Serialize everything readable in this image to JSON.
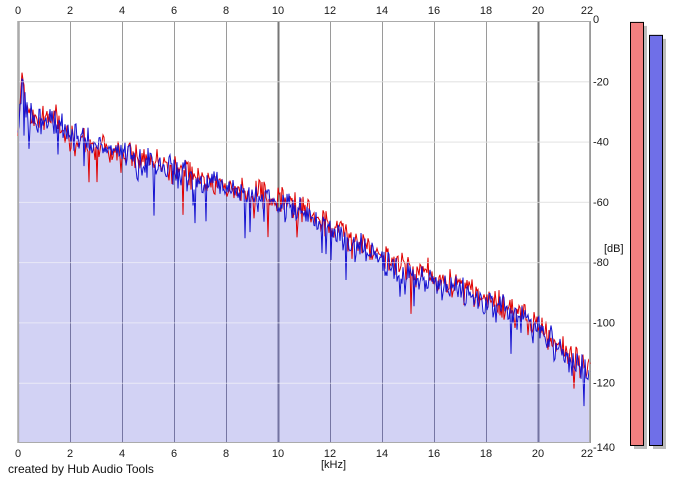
{
  "window": {
    "background": "#ffffff"
  },
  "footer": {
    "credit": "created by Hub Audio Tools"
  },
  "chart_data": {
    "type": "area",
    "title": "",
    "xlabel": "[kHz]",
    "ylabel": "[dB]",
    "xlim": [
      0,
      22
    ],
    "ylim": [
      -140,
      0
    ],
    "x_ticks": [
      0,
      2,
      4,
      6,
      8,
      10,
      12,
      14,
      16,
      18,
      20,
      22
    ],
    "y_ticks": [
      0,
      -20,
      -40,
      -60,
      -80,
      -100,
      -120,
      -140
    ],
    "grid": true,
    "emphasized_x_gridlines": [
      10,
      20
    ],
    "legend": "none",
    "colors": {
      "plot_background": "#ffffff",
      "area_fill": "#cacaf2",
      "v_grid": "#9a9a9a",
      "v_grid_emphasis": "#767676",
      "h_grid": "#c6c6c6",
      "axis_line": "#7e7e7e",
      "red_trace": "#df0000",
      "blue_trace": "#1512d0",
      "meter_red_fill": "#f28080",
      "meter_blue_fill": "#6f6fe8",
      "meter_shadow": "#bcbcbc",
      "tick_text": "#1a1a1a"
    },
    "series": [
      {
        "name": "spectrum-red",
        "color": "#df0000",
        "trend_x": [
          0,
          0.15,
          0.35,
          0.6,
          1,
          1.3,
          2,
          3,
          4,
          5,
          6,
          7,
          8,
          9,
          10,
          11,
          12,
          13,
          14,
          15,
          16,
          17,
          18,
          19,
          20,
          21,
          22
        ],
        "trend_db": [
          -38,
          -13,
          -30,
          -33,
          -33,
          -29,
          -39,
          -42,
          -44,
          -46,
          -49,
          -52,
          -55,
          -57,
          -60,
          -63,
          -68,
          -73,
          -78,
          -82,
          -85,
          -88,
          -92,
          -96,
          -102,
          -109,
          -116
        ]
      },
      {
        "name": "spectrum-blue",
        "color": "#1512d0",
        "fill": "#cacaf2",
        "trend_x": [
          0,
          0.15,
          0.35,
          0.6,
          1,
          1.3,
          2,
          3,
          4,
          5,
          6,
          7,
          8,
          9,
          10,
          11,
          12,
          13,
          14,
          15,
          16,
          17,
          18,
          19,
          20,
          21,
          22
        ],
        "trend_db": [
          -42,
          -16,
          -31,
          -34,
          -35,
          -33,
          -38,
          -41,
          -44,
          -47,
          -50,
          -53,
          -55,
          -58,
          -61,
          -64,
          -69,
          -75,
          -80,
          -84,
          -87,
          -90,
          -93,
          -97,
          -103,
          -110,
          -118
        ]
      }
    ],
    "noise": {
      "seed": 1337,
      "amplitude_db": 6,
      "spike_probability": 0.05,
      "spike_depth_db": 16,
      "points_per_khz": 26
    },
    "level_meters": [
      {
        "name": "red-meter",
        "color": "#f28080",
        "value_db": -0.3
      },
      {
        "name": "blue-meter",
        "color": "#6f6fe8",
        "value_db": -4.6
      }
    ]
  }
}
